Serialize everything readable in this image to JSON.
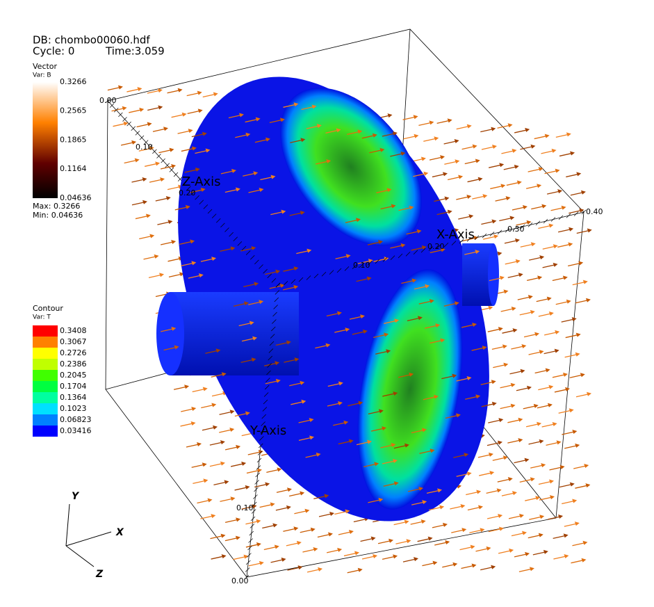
{
  "header": {
    "db": "DB: chombo00060.hdf",
    "cycle": "Cycle: 0",
    "time": "Time:3.059"
  },
  "vector_legend": {
    "title": "Vector",
    "var": "Var: B",
    "labels": [
      "0.3266",
      "0.2565",
      "0.1865",
      "0.1164",
      "0.04636"
    ],
    "max": "Max: 0.3266",
    "min": "Min: 0.04636"
  },
  "contour_legend": {
    "title": "Contour",
    "var": "Var: T",
    "levels": [
      {
        "label": "0.3408",
        "color": "#ff0000"
      },
      {
        "label": "0.3067",
        "color": "#ff8000"
      },
      {
        "label": "0.2726",
        "color": "#ffff00"
      },
      {
        "label": "0.2386",
        "color": "#c0ff00"
      },
      {
        "label": "0.2045",
        "color": "#40ff00"
      },
      {
        "label": "0.1704",
        "color": "#00ff40"
      },
      {
        "label": "0.1364",
        "color": "#00ffa0"
      },
      {
        "label": "0.1023",
        "color": "#00e0ff"
      },
      {
        "label": "0.06823",
        "color": "#0080ff"
      },
      {
        "label": "0.03416",
        "color": "#0000ff"
      }
    ]
  },
  "axes": {
    "z": {
      "title": "Z-Axis",
      "ticks": [
        "0.00",
        "0.10",
        "0.20"
      ]
    },
    "x": {
      "title": "X-Axis",
      "ticks": [
        "0.10",
        "0.20",
        "0.30",
        "0.40"
      ]
    },
    "y": {
      "title": "Y-Axis",
      "ticks": [
        "0.10",
        "0.00"
      ]
    }
  },
  "triad": {
    "x": "X",
    "y": "Y",
    "z": "Z"
  }
}
